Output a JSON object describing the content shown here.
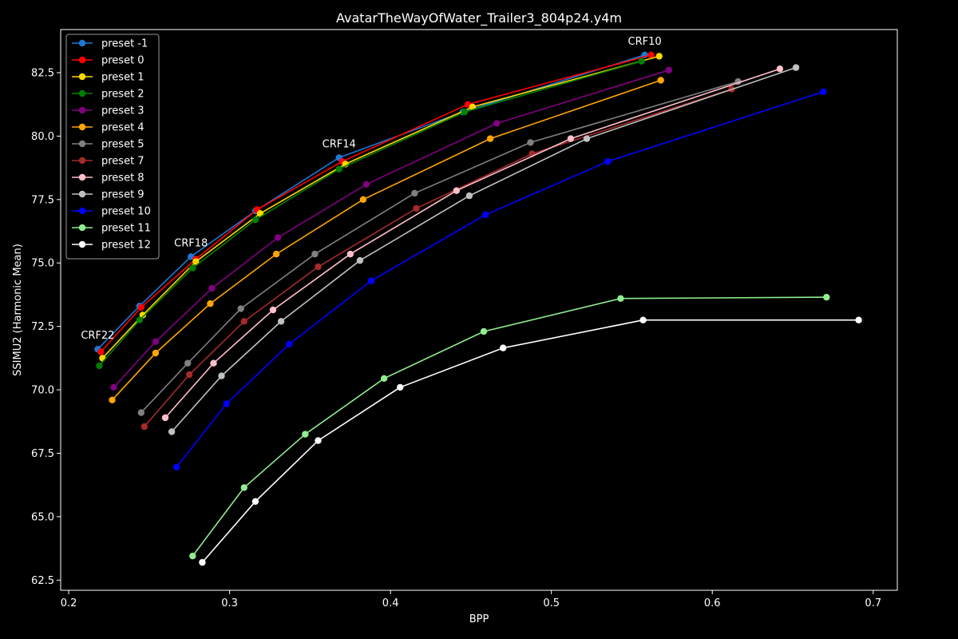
{
  "chart_data": {
    "type": "line",
    "title": "AvatarTheWayOfWater_Trailer3_804p24.y4m",
    "xlabel": "BPP",
    "ylabel": "SSIMU2 (Harmonic Mean)",
    "xlim": [
      0.195,
      0.715
    ],
    "ylim": [
      62.1,
      84.2
    ],
    "xticks": [
      0.2,
      0.3,
      0.4,
      0.5,
      0.6,
      0.7
    ],
    "yticks": [
      62.5,
      65.0,
      67.5,
      70.0,
      72.5,
      75.0,
      77.5,
      80.0,
      82.5
    ],
    "grid": false,
    "legend_position": "top-left",
    "annotations": [
      {
        "text": "CRF10",
        "x": 0.558,
        "y": 83.2
      },
      {
        "text": "CRF14",
        "x": 0.368,
        "y": 79.15
      },
      {
        "text": "CRF18",
        "x": 0.276,
        "y": 75.25
      },
      {
        "text": "CRF22",
        "x": 0.218,
        "y": 71.6
      }
    ],
    "series": [
      {
        "name": "preset -1",
        "color": "#1f77d4",
        "x": [
          0.218,
          0.244,
          0.276,
          0.316,
          0.368,
          0.445,
          0.558
        ],
        "y": [
          71.6,
          73.3,
          75.25,
          77.05,
          79.15,
          80.95,
          83.2
        ]
      },
      {
        "name": "preset 0",
        "color": "#ff0000",
        "x": [
          0.22,
          0.245,
          0.279,
          0.317,
          0.37,
          0.448,
          0.562
        ],
        "y": [
          71.5,
          73.25,
          75.15,
          77.1,
          79.0,
          81.25,
          83.2
        ]
      },
      {
        "name": "preset 1",
        "color": "#ffd700",
        "x": [
          0.221,
          0.246,
          0.279,
          0.319,
          0.372,
          0.451,
          0.567
        ],
        "y": [
          71.25,
          72.95,
          75.05,
          76.95,
          78.9,
          81.15,
          83.15
        ]
      },
      {
        "name": "preset 2",
        "color": "#008000",
        "x": [
          0.219,
          0.244,
          0.277,
          0.316,
          0.368,
          0.446,
          0.556
        ],
        "y": [
          70.95,
          72.75,
          74.8,
          76.7,
          78.7,
          80.95,
          82.95
        ]
      },
      {
        "name": "preset 3",
        "color": "#800080",
        "x": [
          0.228,
          0.254,
          0.289,
          0.33,
          0.385,
          0.466,
          0.573
        ],
        "y": [
          70.1,
          71.9,
          74.0,
          76.0,
          78.1,
          80.5,
          82.6
        ]
      },
      {
        "name": "preset 4",
        "color": "#ffa500",
        "x": [
          0.227,
          0.254,
          0.288,
          0.329,
          0.383,
          0.462,
          0.568
        ],
        "y": [
          69.6,
          71.45,
          73.4,
          75.35,
          77.5,
          79.9,
          82.2
        ]
      },
      {
        "name": "preset 5",
        "color": "#808080",
        "x": [
          0.245,
          0.274,
          0.307,
          0.353,
          0.415,
          0.487,
          0.616
        ],
        "y": [
          69.1,
          71.05,
          73.2,
          75.35,
          77.75,
          79.75,
          82.15
        ]
      },
      {
        "name": "preset 7",
        "color": "#a52a2a",
        "x": [
          0.247,
          0.275,
          0.309,
          0.355,
          0.416,
          0.488,
          0.612
        ],
        "y": [
          68.55,
          70.6,
          72.7,
          74.85,
          77.15,
          79.3,
          81.85
        ]
      },
      {
        "name": "preset 8",
        "color": "#ffc0cb",
        "x": [
          0.26,
          0.29,
          0.327,
          0.375,
          0.441,
          0.512,
          0.642
        ],
        "y": [
          68.9,
          71.05,
          73.15,
          75.35,
          77.85,
          79.9,
          82.65
        ]
      },
      {
        "name": "preset 9",
        "color": "#c0c0c0",
        "x": [
          0.264,
          0.295,
          0.332,
          0.381,
          0.449,
          0.522,
          0.652
        ],
        "y": [
          68.35,
          70.55,
          72.7,
          75.1,
          77.65,
          79.9,
          82.7
        ]
      },
      {
        "name": "preset 10",
        "color": "#0000ff",
        "x": [
          0.267,
          0.298,
          0.337,
          0.388,
          0.459,
          0.535,
          0.669
        ],
        "y": [
          66.95,
          69.45,
          71.8,
          74.3,
          76.9,
          79.0,
          81.75
        ]
      },
      {
        "name": "preset 11",
        "color": "#90ee90",
        "x": [
          0.277,
          0.309,
          0.347,
          0.396,
          0.458,
          0.543,
          0.671
        ],
        "y": [
          63.45,
          66.15,
          68.25,
          70.45,
          72.3,
          73.6,
          73.65
        ]
      },
      {
        "name": "preset 12",
        "color": "#ffffff",
        "x": [
          0.283,
          0.316,
          0.355,
          0.406,
          0.47,
          0.557,
          0.691
        ],
        "y": [
          63.2,
          65.6,
          68.0,
          70.1,
          71.65,
          72.75,
          72.75
        ]
      }
    ]
  }
}
